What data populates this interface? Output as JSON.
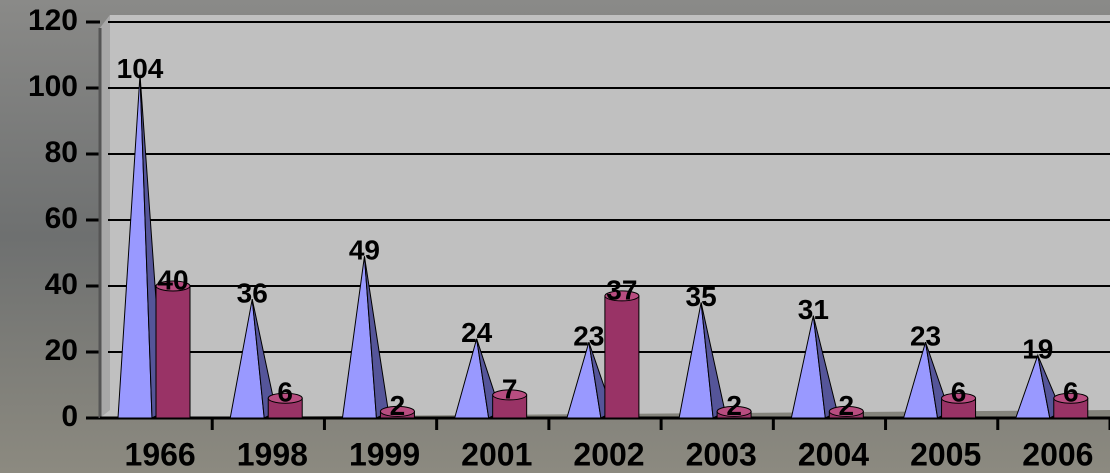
{
  "chart_data": {
    "type": "bar",
    "categories": [
      "1966",
      "1998",
      "1999",
      "2001",
      "2002",
      "2003",
      "2004",
      "2005",
      "2006"
    ],
    "series": [
      {
        "color": "#9999ff",
        "shape": "pyramid",
        "values": [
          104,
          36,
          49,
          24,
          23,
          35,
          31,
          23,
          19
        ]
      },
      {
        "color": "#993366",
        "shape": "cylinder",
        "values": [
          40,
          6,
          2,
          7,
          37,
          2,
          2,
          6,
          6
        ]
      }
    ],
    "ylim": [
      0,
      120
    ],
    "yticks": [
      0,
      20,
      40,
      60,
      80,
      100,
      120
    ],
    "grid": true
  }
}
